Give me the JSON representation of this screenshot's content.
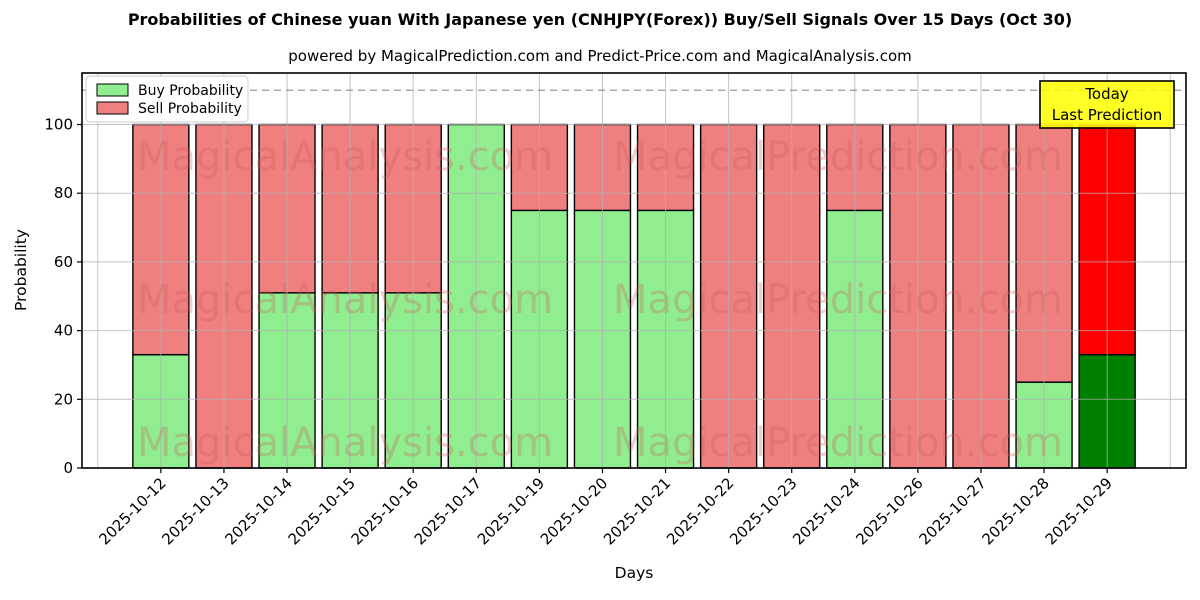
{
  "header": {
    "title": "Probabilities of Chinese yuan With Japanese yen (CNHJPY(Forex)) Buy/Sell Signals Over 15 Days (Oct 30)",
    "subtitle": "powered by MagicalPrediction.com and Predict-Price.com and MagicalAnalysis.com"
  },
  "chart_data": {
    "type": "bar",
    "stacked": true,
    "title": "Probabilities of Chinese yuan With Japanese yen (CNHJPY(Forex)) Buy/Sell Signals Over 15 Days (Oct 30)",
    "xlabel": "Days",
    "ylabel": "Probability",
    "categories": [
      "2025-10-12",
      "2025-10-13",
      "2025-10-14",
      "2025-10-15",
      "2025-10-16",
      "2025-10-17",
      "2025-10-19",
      "2025-10-20",
      "2025-10-21",
      "2025-10-22",
      "2025-10-23",
      "2025-10-24",
      "2025-10-26",
      "2025-10-27",
      "2025-10-28",
      "2025-10-29"
    ],
    "series": [
      {
        "name": "Buy Probability",
        "color": "#90ee90",
        "values": [
          33,
          0,
          51,
          51,
          51,
          100,
          75,
          75,
          75,
          0,
          0,
          75,
          0,
          0,
          25,
          33
        ]
      },
      {
        "name": "Sell Probability",
        "color": "#f08080",
        "values": [
          67,
          100,
          49,
          49,
          49,
          0,
          25,
          25,
          25,
          100,
          100,
          25,
          100,
          100,
          75,
          67
        ]
      }
    ],
    "highlight_last_bar": {
      "buy_color": "#008000",
      "sell_color": "#ff0000"
    },
    "ylim": [
      0,
      115
    ],
    "yticks": [
      0,
      20,
      40,
      60,
      80,
      100
    ],
    "dashed_line_y": 110,
    "grid": true,
    "legend_position": "upper-left",
    "today_box": {
      "line1": "Today",
      "line2": "Last Prediction",
      "bg_color": "#ffff00"
    },
    "watermarks": {
      "left": "MagicalAnalysis.com",
      "right": "MagicalPrediction.com"
    },
    "colors": {
      "grid": "#b0b0b0",
      "dashed_line": "#8c8c8c",
      "bar_edge": "#000000"
    }
  }
}
